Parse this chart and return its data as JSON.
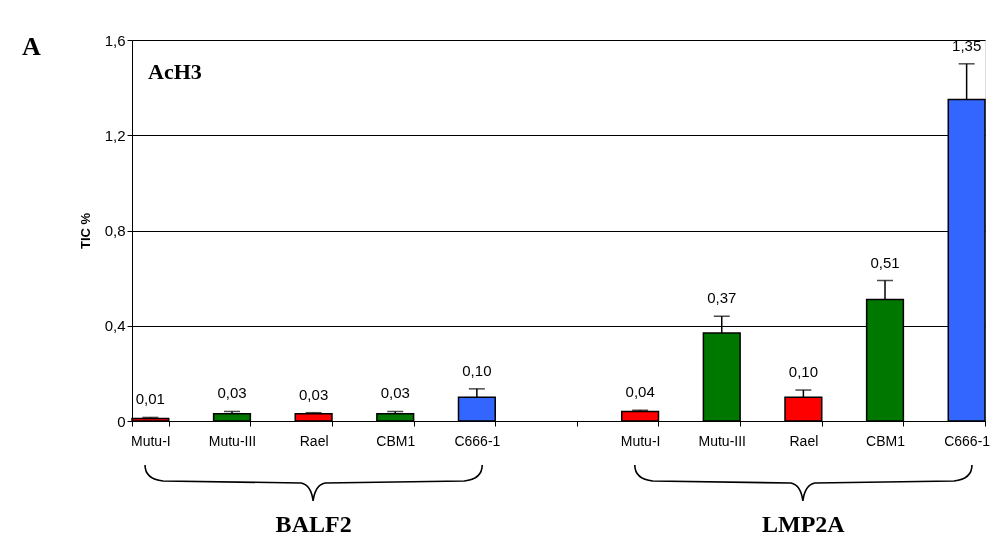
{
  "chart_data": {
    "type": "bar",
    "title": "AcH3",
    "ylabel": "TIC %",
    "categories": [
      "Mutu-I",
      "Mutu-III",
      "Rael",
      "CBM1",
      "C666-1",
      null,
      "Mutu-I",
      "Mutu-III",
      "Rael",
      "CBM1",
      "C666-1"
    ],
    "values": [
      0.01,
      0.03,
      0.03,
      0.03,
      0.1,
      null,
      0.04,
      0.37,
      0.1,
      0.51,
      1.35
    ],
    "colors": [
      "#ff0000",
      "#007800",
      "#ff0000",
      "#007800",
      "#3366ff",
      "#ffffff",
      "#ff0000",
      "#007800",
      "#ff0000",
      "#007800",
      "#3366ff"
    ],
    "errors": [
      [
        0.01,
        0.015
      ],
      [
        0.03,
        0.04
      ],
      [
        0.03,
        0.035
      ],
      [
        0.03,
        0.04
      ],
      [
        0.1,
        0.135
      ],
      null,
      [
        0.04,
        0.045
      ],
      [
        0.37,
        0.44
      ],
      [
        0.1,
        0.13
      ],
      [
        0.51,
        0.59
      ],
      [
        1.35,
        1.5
      ]
    ],
    "value_labels": [
      "0,01",
      "0,03",
      "0,03",
      "0,03",
      "0,10",
      null,
      "0,04",
      "0,37",
      "0,10",
      "0,51",
      "1,35"
    ],
    "ylim": [
      0,
      1.6
    ],
    "yticks": [
      0,
      {
        "value": 0.4,
        "label": "0,4"
      },
      {
        "value": 0.8,
        "label": "0,8"
      },
      {
        "value": 1.2,
        "label": "1,2"
      },
      {
        "value": 1.6,
        "label": "1,6"
      }
    ],
    "grid": "y",
    "annotations": [
      "A",
      "BALF2",
      "LMP2A"
    ]
  }
}
